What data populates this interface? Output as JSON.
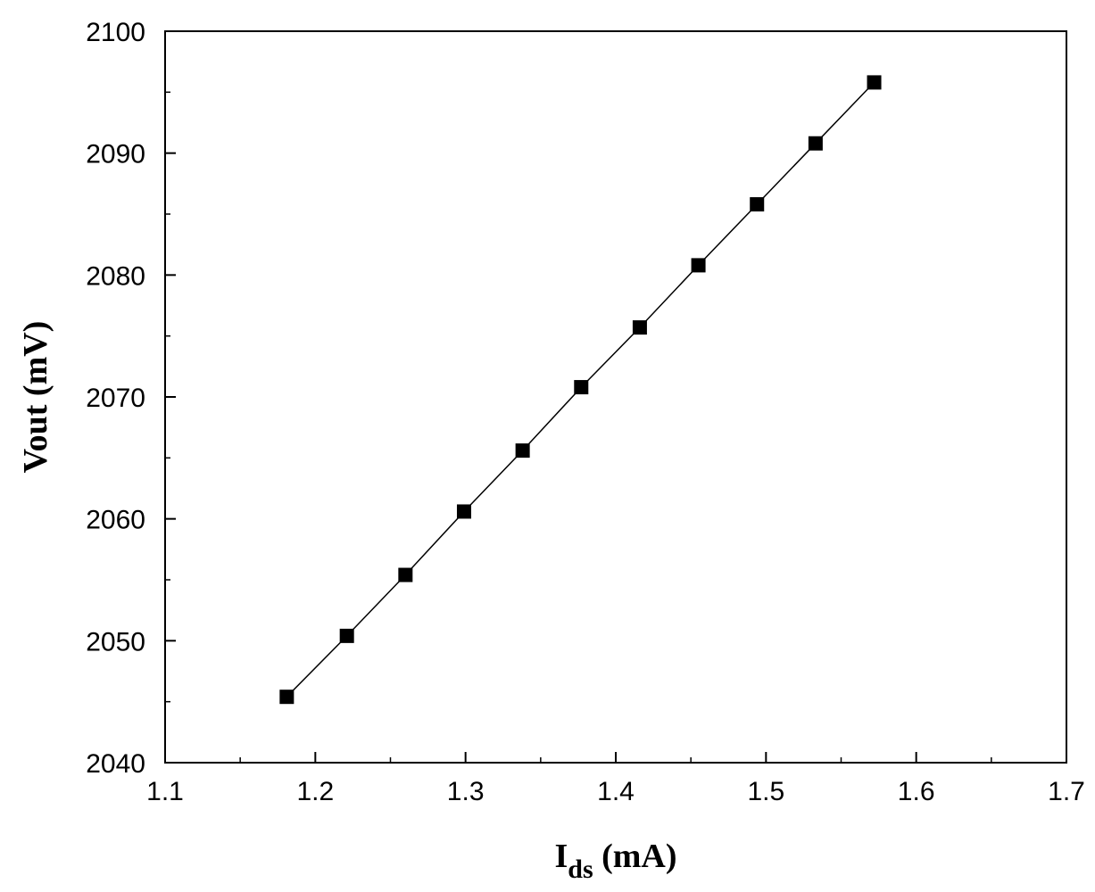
{
  "chart_data": {
    "type": "line",
    "xlabel": {
      "main": "I",
      "sub": "ds",
      "rest": " (mA)"
    },
    "ylabel": "Vout (mV)",
    "xlim": [
      1.1,
      1.7
    ],
    "ylim": [
      2040,
      2100
    ],
    "xticks": [
      1.1,
      1.2,
      1.3,
      1.4,
      1.5,
      1.6,
      1.7
    ],
    "xtick_labels": [
      "1.1",
      "1.2",
      "1.3",
      "1.4",
      "1.5",
      "1.6",
      "1.7"
    ],
    "yticks": [
      2040,
      2050,
      2060,
      2070,
      2080,
      2090,
      2100
    ],
    "ytick_labels": [
      "2040",
      "2050",
      "2060",
      "2070",
      "2080",
      "2090",
      "2100"
    ],
    "grid": false,
    "marker": "square",
    "line_color": "#000000",
    "marker_color": "#000000",
    "series": [
      {
        "x": [
          1.181,
          1.221,
          1.26,
          1.299,
          1.338,
          1.377,
          1.416,
          1.455,
          1.494,
          1.533,
          1.572
        ],
        "y": [
          2045.4,
          2050.4,
          2055.4,
          2060.6,
          2065.6,
          2070.8,
          2075.7,
          2080.8,
          2085.8,
          2090.8,
          2095.8
        ]
      }
    ]
  }
}
